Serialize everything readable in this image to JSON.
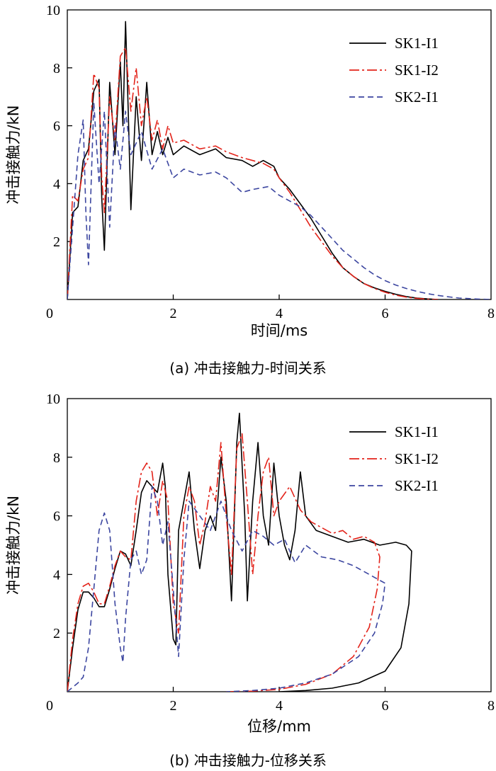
{
  "chart_data": [
    {
      "type": "line",
      "caption": "(a) 冲击接触力-时间关系",
      "xlabel": "时间/ms",
      "ylabel": "冲击接触力/kN",
      "xlim": [
        0,
        8
      ],
      "ylim": [
        0,
        10
      ],
      "xticks": [
        0,
        2,
        4,
        6,
        8
      ],
      "yticks": [
        2,
        4,
        6,
        8,
        10
      ],
      "legend_position": "top-right",
      "series": [
        {
          "name": "SK1-I1",
          "color": "#000000",
          "dash": "solid",
          "x": [
            0,
            0.1,
            0.2,
            0.3,
            0.4,
            0.5,
            0.6,
            0.65,
            0.7,
            0.8,
            0.9,
            1.0,
            1.05,
            1.1,
            1.15,
            1.2,
            1.3,
            1.4,
            1.5,
            1.6,
            1.7,
            1.8,
            1.9,
            2.0,
            2.2,
            2.5,
            2.8,
            3.0,
            3.3,
            3.5,
            3.7,
            3.9,
            4.0,
            4.2,
            4.4,
            4.6,
            4.8,
            5.0,
            5.2,
            5.4,
            5.6,
            5.8,
            6.0,
            6.2,
            6.4,
            6.6,
            6.8,
            7.0
          ],
          "values": [
            0,
            3.0,
            3.2,
            4.8,
            5.2,
            7.2,
            7.6,
            3.5,
            1.7,
            7.5,
            5.0,
            8.2,
            6.0,
            9.6,
            6.5,
            3.1,
            7.0,
            4.8,
            7.5,
            5.0,
            5.8,
            5.0,
            5.6,
            5.0,
            5.3,
            5.0,
            5.2,
            4.9,
            4.8,
            4.6,
            4.8,
            4.6,
            4.2,
            3.8,
            3.3,
            2.8,
            2.2,
            1.6,
            1.1,
            0.8,
            0.55,
            0.4,
            0.28,
            0.18,
            0.1,
            0.05,
            0.02,
            0
          ]
        },
        {
          "name": "SK1-I2",
          "color": "#e3241b",
          "dash": "14,4,3,4",
          "x": [
            0,
            0.1,
            0.2,
            0.3,
            0.4,
            0.5,
            0.6,
            0.65,
            0.7,
            0.8,
            0.9,
            1.0,
            1.1,
            1.2,
            1.3,
            1.4,
            1.5,
            1.6,
            1.7,
            1.8,
            1.9,
            2.0,
            2.2,
            2.5,
            2.8,
            3.0,
            3.3,
            3.5,
            3.7,
            3.9,
            4.0,
            4.2,
            4.4,
            4.6,
            4.8,
            5.0,
            5.2,
            5.4,
            5.6,
            5.8,
            6.0,
            6.2,
            6.4,
            6.6,
            6.8,
            7.0
          ],
          "values": [
            0,
            3.6,
            3.4,
            4.5,
            4.9,
            7.8,
            7.3,
            4.2,
            3.0,
            7.0,
            5.5,
            8.4,
            8.7,
            6.5,
            8.0,
            6.0,
            7.0,
            5.5,
            6.2,
            5.2,
            6.0,
            5.4,
            5.5,
            5.2,
            5.3,
            5.1,
            4.9,
            4.8,
            4.7,
            4.5,
            4.2,
            3.7,
            3.1,
            2.5,
            2.0,
            1.5,
            1.1,
            0.8,
            0.55,
            0.38,
            0.25,
            0.15,
            0.08,
            0.04,
            0.01,
            0
          ]
        },
        {
          "name": "SK2-I1",
          "color": "#3c46a0",
          "dash": "8,5",
          "x": [
            0,
            0.1,
            0.2,
            0.3,
            0.35,
            0.4,
            0.5,
            0.6,
            0.7,
            0.8,
            0.9,
            1.0,
            1.1,
            1.2,
            1.4,
            1.6,
            1.8,
            2.0,
            2.2,
            2.5,
            2.8,
            3.0,
            3.3,
            3.5,
            3.8,
            4.0,
            4.2,
            4.4,
            4.6,
            4.8,
            5.0,
            5.2,
            5.4,
            5.6,
            5.8,
            6.0,
            6.2,
            6.4,
            6.6,
            6.8,
            7.0,
            7.2,
            7.4,
            7.6,
            7.8,
            8.0
          ],
          "values": [
            0,
            2.5,
            5.0,
            6.2,
            3.0,
            1.2,
            6.8,
            4.0,
            6.5,
            2.5,
            6.0,
            4.5,
            6.5,
            5.0,
            5.8,
            4.5,
            5.2,
            4.2,
            4.5,
            4.3,
            4.4,
            4.2,
            3.7,
            3.8,
            3.9,
            3.6,
            3.4,
            3.2,
            2.9,
            2.5,
            2.1,
            1.7,
            1.4,
            1.1,
            0.85,
            0.65,
            0.5,
            0.38,
            0.28,
            0.2,
            0.14,
            0.09,
            0.05,
            0.03,
            0.01,
            0
          ]
        }
      ]
    },
    {
      "type": "line",
      "caption": "(b) 冲击接触力-位移关系",
      "xlabel": "位移/mm",
      "ylabel": "冲击接触力/kN",
      "xlim": [
        0,
        8
      ],
      "ylim": [
        0,
        10
      ],
      "xticks": [
        0,
        2,
        4,
        6,
        8
      ],
      "yticks": [
        2,
        4,
        6,
        8,
        10
      ],
      "legend_position": "top-right",
      "series": [
        {
          "name": "SK1-I1",
          "color": "#000000",
          "dash": "solid",
          "x": [
            0,
            0.1,
            0.2,
            0.3,
            0.4,
            0.5,
            0.6,
            0.7,
            0.8,
            0.9,
            1.0,
            1.1,
            1.2,
            1.3,
            1.4,
            1.5,
            1.6,
            1.7,
            1.8,
            1.85,
            1.9,
            2.0,
            2.05,
            2.1,
            2.2,
            2.3,
            2.4,
            2.5,
            2.6,
            2.7,
            2.8,
            2.9,
            3.0,
            3.1,
            3.2,
            3.25,
            3.35,
            3.4,
            3.5,
            3.6,
            3.7,
            3.8,
            3.9,
            4.0,
            4.1,
            4.2,
            4.3,
            4.4,
            4.5,
            4.7,
            5.0,
            5.3,
            5.6,
            5.9,
            6.2,
            6.4,
            6.5,
            6.45,
            6.3,
            6.0,
            5.5,
            5.0,
            4.5,
            4.0
          ],
          "values": [
            0,
            1.5,
            2.8,
            3.4,
            3.4,
            3.2,
            2.9,
            2.9,
            3.5,
            4.2,
            4.8,
            4.7,
            4.3,
            5.5,
            6.8,
            7.2,
            7.0,
            6.8,
            7.8,
            7.0,
            4.0,
            1.8,
            1.6,
            5.5,
            6.5,
            7.5,
            5.5,
            4.2,
            5.5,
            6.0,
            5.5,
            8.0,
            6.5,
            3.1,
            8.5,
            9.5,
            6.0,
            3.1,
            6.5,
            8.5,
            6.0,
            5.0,
            7.8,
            6.0,
            5.0,
            4.5,
            5.5,
            7.5,
            6.0,
            5.5,
            5.3,
            5.1,
            5.2,
            5.0,
            5.1,
            5.0,
            4.8,
            3.0,
            1.5,
            0.7,
            0.3,
            0.12,
            0.04,
            0
          ]
        },
        {
          "name": "SK1-I2",
          "color": "#e3241b",
          "dash": "14,4,3,4",
          "x": [
            0,
            0.1,
            0.2,
            0.3,
            0.4,
            0.5,
            0.6,
            0.7,
            0.8,
            0.9,
            1.0,
            1.1,
            1.2,
            1.3,
            1.4,
            1.5,
            1.6,
            1.7,
            1.8,
            1.9,
            2.0,
            2.1,
            2.2,
            2.3,
            2.4,
            2.5,
            2.6,
            2.7,
            2.8,
            2.9,
            3.0,
            3.1,
            3.2,
            3.3,
            3.4,
            3.5,
            3.6,
            3.7,
            3.8,
            3.9,
            4.0,
            4.2,
            4.4,
            4.6,
            4.8,
            5.0,
            5.2,
            5.4,
            5.6,
            5.8,
            5.9,
            5.85,
            5.7,
            5.4,
            5.0,
            4.5,
            4.0,
            3.5,
            3.0
          ],
          "values": [
            0,
            1.8,
            3.0,
            3.6,
            3.7,
            3.4,
            3.0,
            3.0,
            3.6,
            4.3,
            4.8,
            4.6,
            4.5,
            6.5,
            7.5,
            7.8,
            7.5,
            6.0,
            7.2,
            6.5,
            3.0,
            2.0,
            6.0,
            7.0,
            6.5,
            5.0,
            5.8,
            7.0,
            6.5,
            8.5,
            6.0,
            4.0,
            8.3,
            8.8,
            6.5,
            4.0,
            6.0,
            7.5,
            8.0,
            6.0,
            6.5,
            7.0,
            6.2,
            5.8,
            5.6,
            5.4,
            5.5,
            5.2,
            5.3,
            5.1,
            4.6,
            3.5,
            2.2,
            1.2,
            0.6,
            0.25,
            0.08,
            0.02,
            0
          ]
        },
        {
          "name": "SK2-I1",
          "color": "#3c46a0",
          "dash": "8,5",
          "x": [
            0,
            0.2,
            0.3,
            0.4,
            0.5,
            0.6,
            0.7,
            0.8,
            0.9,
            1.0,
            1.05,
            1.1,
            1.2,
            1.3,
            1.4,
            1.5,
            1.6,
            1.7,
            1.8,
            1.9,
            2.0,
            2.1,
            2.2,
            2.3,
            2.5,
            2.7,
            2.9,
            3.1,
            3.3,
            3.5,
            3.7,
            3.9,
            4.1,
            4.3,
            4.5,
            4.8,
            5.1,
            5.4,
            5.7,
            5.9,
            6.0,
            5.95,
            5.8,
            5.5,
            5.0,
            4.5,
            4.0,
            3.5,
            3.0
          ],
          "values": [
            0,
            0.3,
            0.5,
            1.5,
            3.5,
            5.5,
            6.1,
            5.5,
            3.0,
            1.5,
            1.0,
            2.5,
            4.5,
            4.8,
            4.0,
            4.5,
            7.0,
            6.5,
            5.0,
            5.8,
            3.5,
            1.2,
            4.5,
            6.5,
            6.0,
            5.5,
            6.5,
            5.5,
            4.8,
            5.5,
            5.3,
            5.0,
            5.2,
            4.4,
            5.0,
            4.6,
            4.5,
            4.3,
            4.0,
            3.8,
            3.7,
            3.0,
            2.0,
            1.2,
            0.6,
            0.3,
            0.12,
            0.04,
            0
          ]
        }
      ]
    }
  ]
}
